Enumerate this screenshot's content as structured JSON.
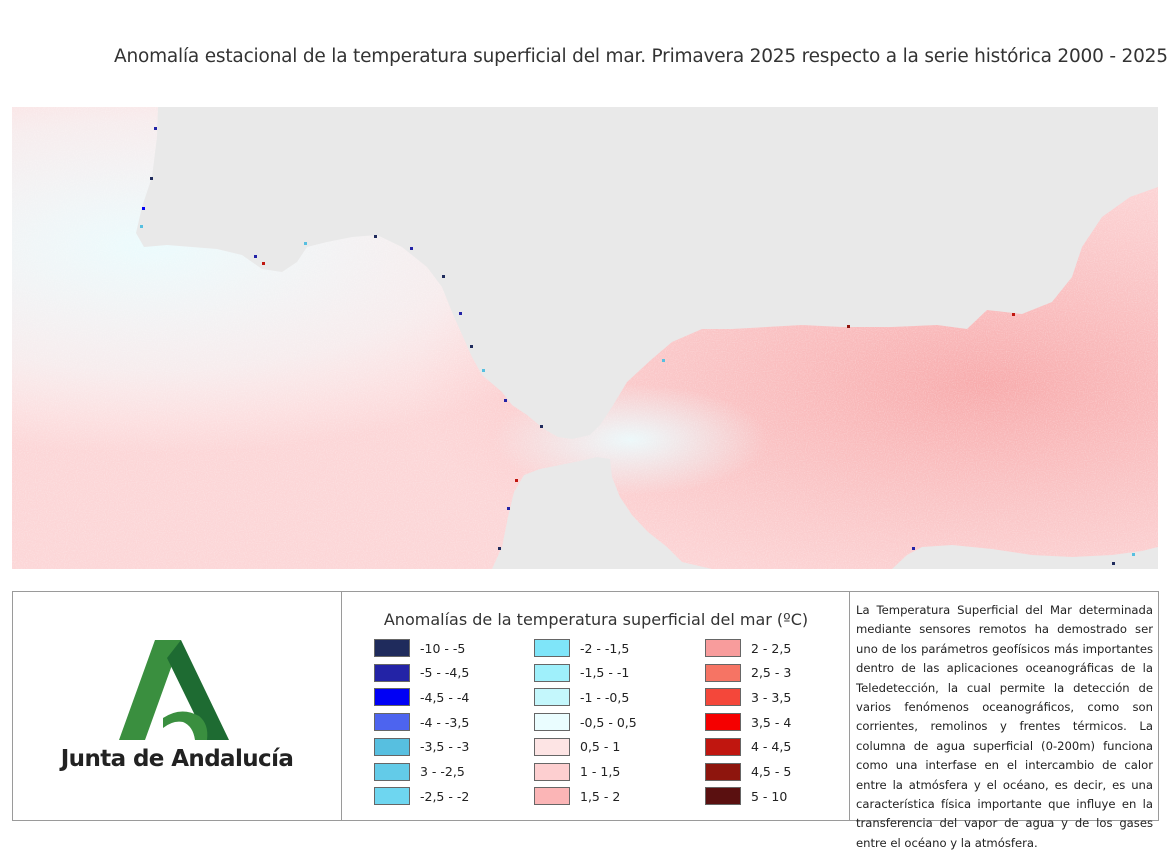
{
  "title": "Anomalía estacional de la temperatura superficial del mar. Primavera 2025 respecto a la serie histórica 2000 - 2025",
  "colors": {
    "land": "#e9e9e9",
    "water_base": "#fcd9da",
    "border": "#9a9a9a"
  },
  "logo": {
    "icon": "junta-de-andalucia-logo-icon",
    "text": "Junta de Andalucía",
    "green_light": "#3a8f3f",
    "green_dark": "#1e6b32"
  },
  "legend": {
    "title": "Anomalías de la temperatura superficial del mar (ºC)",
    "items": [
      {
        "label": "-10 - -5",
        "color": "#1f2b5c"
      },
      {
        "label": "-5 - -4,5",
        "color": "#2323a6"
      },
      {
        "label": "-4,5 - -4",
        "color": "#0000f5"
      },
      {
        "label": "-4 - -3,5",
        "color": "#4d64ef"
      },
      {
        "label": "-3,5 - -3",
        "color": "#57bfe0"
      },
      {
        "label": "3 - -2,5",
        "color": "#63cbe8"
      },
      {
        "label": "-2,5 - -2",
        "color": "#6ed6f0"
      },
      {
        "label": "-2 - -1,5",
        "color": "#7fe5f9"
      },
      {
        "label": "-1,5 - -1",
        "color": "#9ff0fb"
      },
      {
        "label": "-1 - -0,5",
        "color": "#c4f7fc"
      },
      {
        "label": "-0,5 - 0,5",
        "color": "#eafdff"
      },
      {
        "label": "0,5 - 1",
        "color": "#fde4e4"
      },
      {
        "label": "1 - 1,5",
        "color": "#fdcfd0"
      },
      {
        "label": "1,5 - 2",
        "color": "#fbb5b6"
      },
      {
        "label": "2 - 2,5",
        "color": "#f89c9c"
      },
      {
        "label": "2,5 - 3",
        "color": "#f67464"
      },
      {
        "label": "3 - 3,5",
        "color": "#f4473a"
      },
      {
        "label": "3,5 - 4",
        "color": "#f50000"
      },
      {
        "label": "4 - 4,5",
        "color": "#c0160f"
      },
      {
        "label": "4,5 - 5",
        "color": "#8e150d"
      },
      {
        "label": "5 - 10",
        "color": "#5a1010"
      }
    ]
  },
  "description": "La Temperatura Superficial del Mar determinada mediante sensores remotos ha demostrado ser uno de los parámetros geofísicos más importantes dentro de las aplicaciones oceanográficas de la Teledetección, la cual permite la detección de varios fenómenos oceanográficos, como son corrientes, remolinos y frentes térmicos. La columna de agua superficial (0-200m) funciona como una interfase en el intercambio de calor entre la atmósfera y el océano, es decir, es una característica física importante que influye en la transferencia del vapor de agua y de los gases entre el océano y la atmósfera."
}
